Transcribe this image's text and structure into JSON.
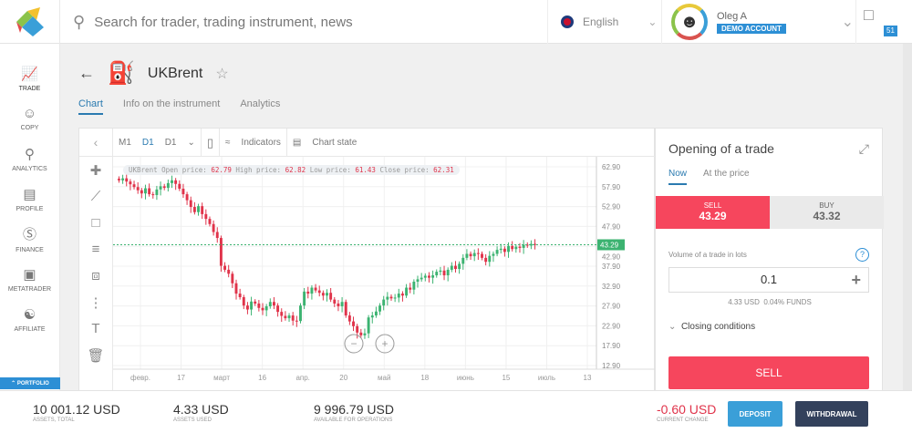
{
  "header": {
    "search_placeholder": "Search for trader, trading instrument, news",
    "language": "English",
    "user_name": "Oleg A",
    "account_badge": "DEMO ACCOUNT",
    "messages_count": "51"
  },
  "sidebar": {
    "items": [
      {
        "label": "TRADE"
      },
      {
        "label": "COPY"
      },
      {
        "label": "ANALYTICS"
      },
      {
        "label": "PROFILE"
      },
      {
        "label": "FINANCE"
      },
      {
        "label": "METATRADER"
      },
      {
        "label": "AFFILIATE"
      }
    ],
    "portfolio": "PORTFOLIO"
  },
  "instrument": {
    "title": "UKBrent",
    "tabs": [
      "Chart",
      "Info on the instrument",
      "Analytics"
    ]
  },
  "toolbar": {
    "m1": "M1",
    "d1": "D1",
    "d1_select": "D1",
    "indicators": "Indicators",
    "chart_state": "Chart state"
  },
  "ohlc": {
    "name": "UKBrent",
    "open_label": "Open price:",
    "open": "62.79",
    "high_label": "High price:",
    "high": "62.82",
    "low_label": "Low price:",
    "low": "61.43",
    "close_label": "Close price:",
    "close": "62.31"
  },
  "chart_data": {
    "type": "candlestick",
    "yticks": [
      "62.90",
      "57.90",
      "52.90",
      "47.90",
      "42.90",
      "37.90",
      "32.90",
      "27.90",
      "22.90",
      "17.90",
      "12.90"
    ],
    "ylim": [
      12.9,
      62.9
    ],
    "xticks": [
      "февр.",
      "17",
      "март",
      "16",
      "апр.",
      "20",
      "май",
      "18",
      "июнь",
      "15",
      "июль",
      "13"
    ],
    "current_price": "43.29",
    "closes": [
      59.5,
      60,
      59.2,
      58.5,
      57.8,
      57,
      56.2,
      57.5,
      56,
      55.8,
      57.2,
      58,
      57.6,
      58.8,
      59.5,
      58.6,
      57.4,
      56,
      54.5,
      52.8,
      51.5,
      53,
      51,
      49.8,
      48.5,
      46.5,
      45,
      38,
      37,
      36,
      33.6,
      31,
      30.1,
      28,
      27,
      29,
      28.5,
      27.4,
      26.8,
      27.8,
      28.9,
      28,
      26.4,
      25.4,
      24.8,
      25.5,
      24.2,
      24.1,
      28,
      31.5,
      31,
      32.5,
      31.8,
      31.2,
      30.5,
      31.2,
      29.5,
      28.5,
      27.8,
      28.9,
      25.5,
      24,
      22.8,
      21.2,
      20.5,
      21,
      25,
      25.5,
      26.5,
      28,
      29.5,
      30.2,
      29.8,
      30,
      31,
      30.5,
      32.5,
      32,
      34,
      34.6,
      35,
      35.5,
      35,
      35.6,
      36.5,
      36.8,
      35.6,
      37,
      38,
      37.2,
      38.5,
      40,
      41,
      40.4,
      41.2,
      41,
      40,
      39,
      40.5,
      41,
      42,
      42.3,
      41.5,
      43,
      42.2,
      42.8,
      42.5,
      43.3,
      43.1,
      43.5,
      43.3
    ]
  },
  "trade": {
    "title": "Opening of a trade",
    "tabs": [
      "Now",
      "At the price"
    ],
    "sell_label": "SELL",
    "sell_price": "43.29",
    "buy_label": "BUY",
    "buy_price": "43.32",
    "volume_label": "Volume of a trade in lots",
    "volume": "0.1",
    "cost": "4.33 USD",
    "funds": "0.04% FUNDS",
    "closing": "Closing conditions",
    "sell_button": "SELL"
  },
  "footer": {
    "total": "10 001.12 USD",
    "total_label": "ASSETS, TOTAL",
    "used": "4.33 USD",
    "used_label": "ASSETS USED",
    "available": "9 996.79 USD",
    "available_label": "AVAILABLE FOR OPERATIONS",
    "change": "-0.60 USD",
    "change_label": "CURRENT CHANGE",
    "deposit": "DEPOSIT",
    "withdrawal": "WITHDRAWAL"
  },
  "colors": {
    "up": "#3cb371",
    "down": "#e0334a",
    "accent": "#2d8fd5"
  }
}
